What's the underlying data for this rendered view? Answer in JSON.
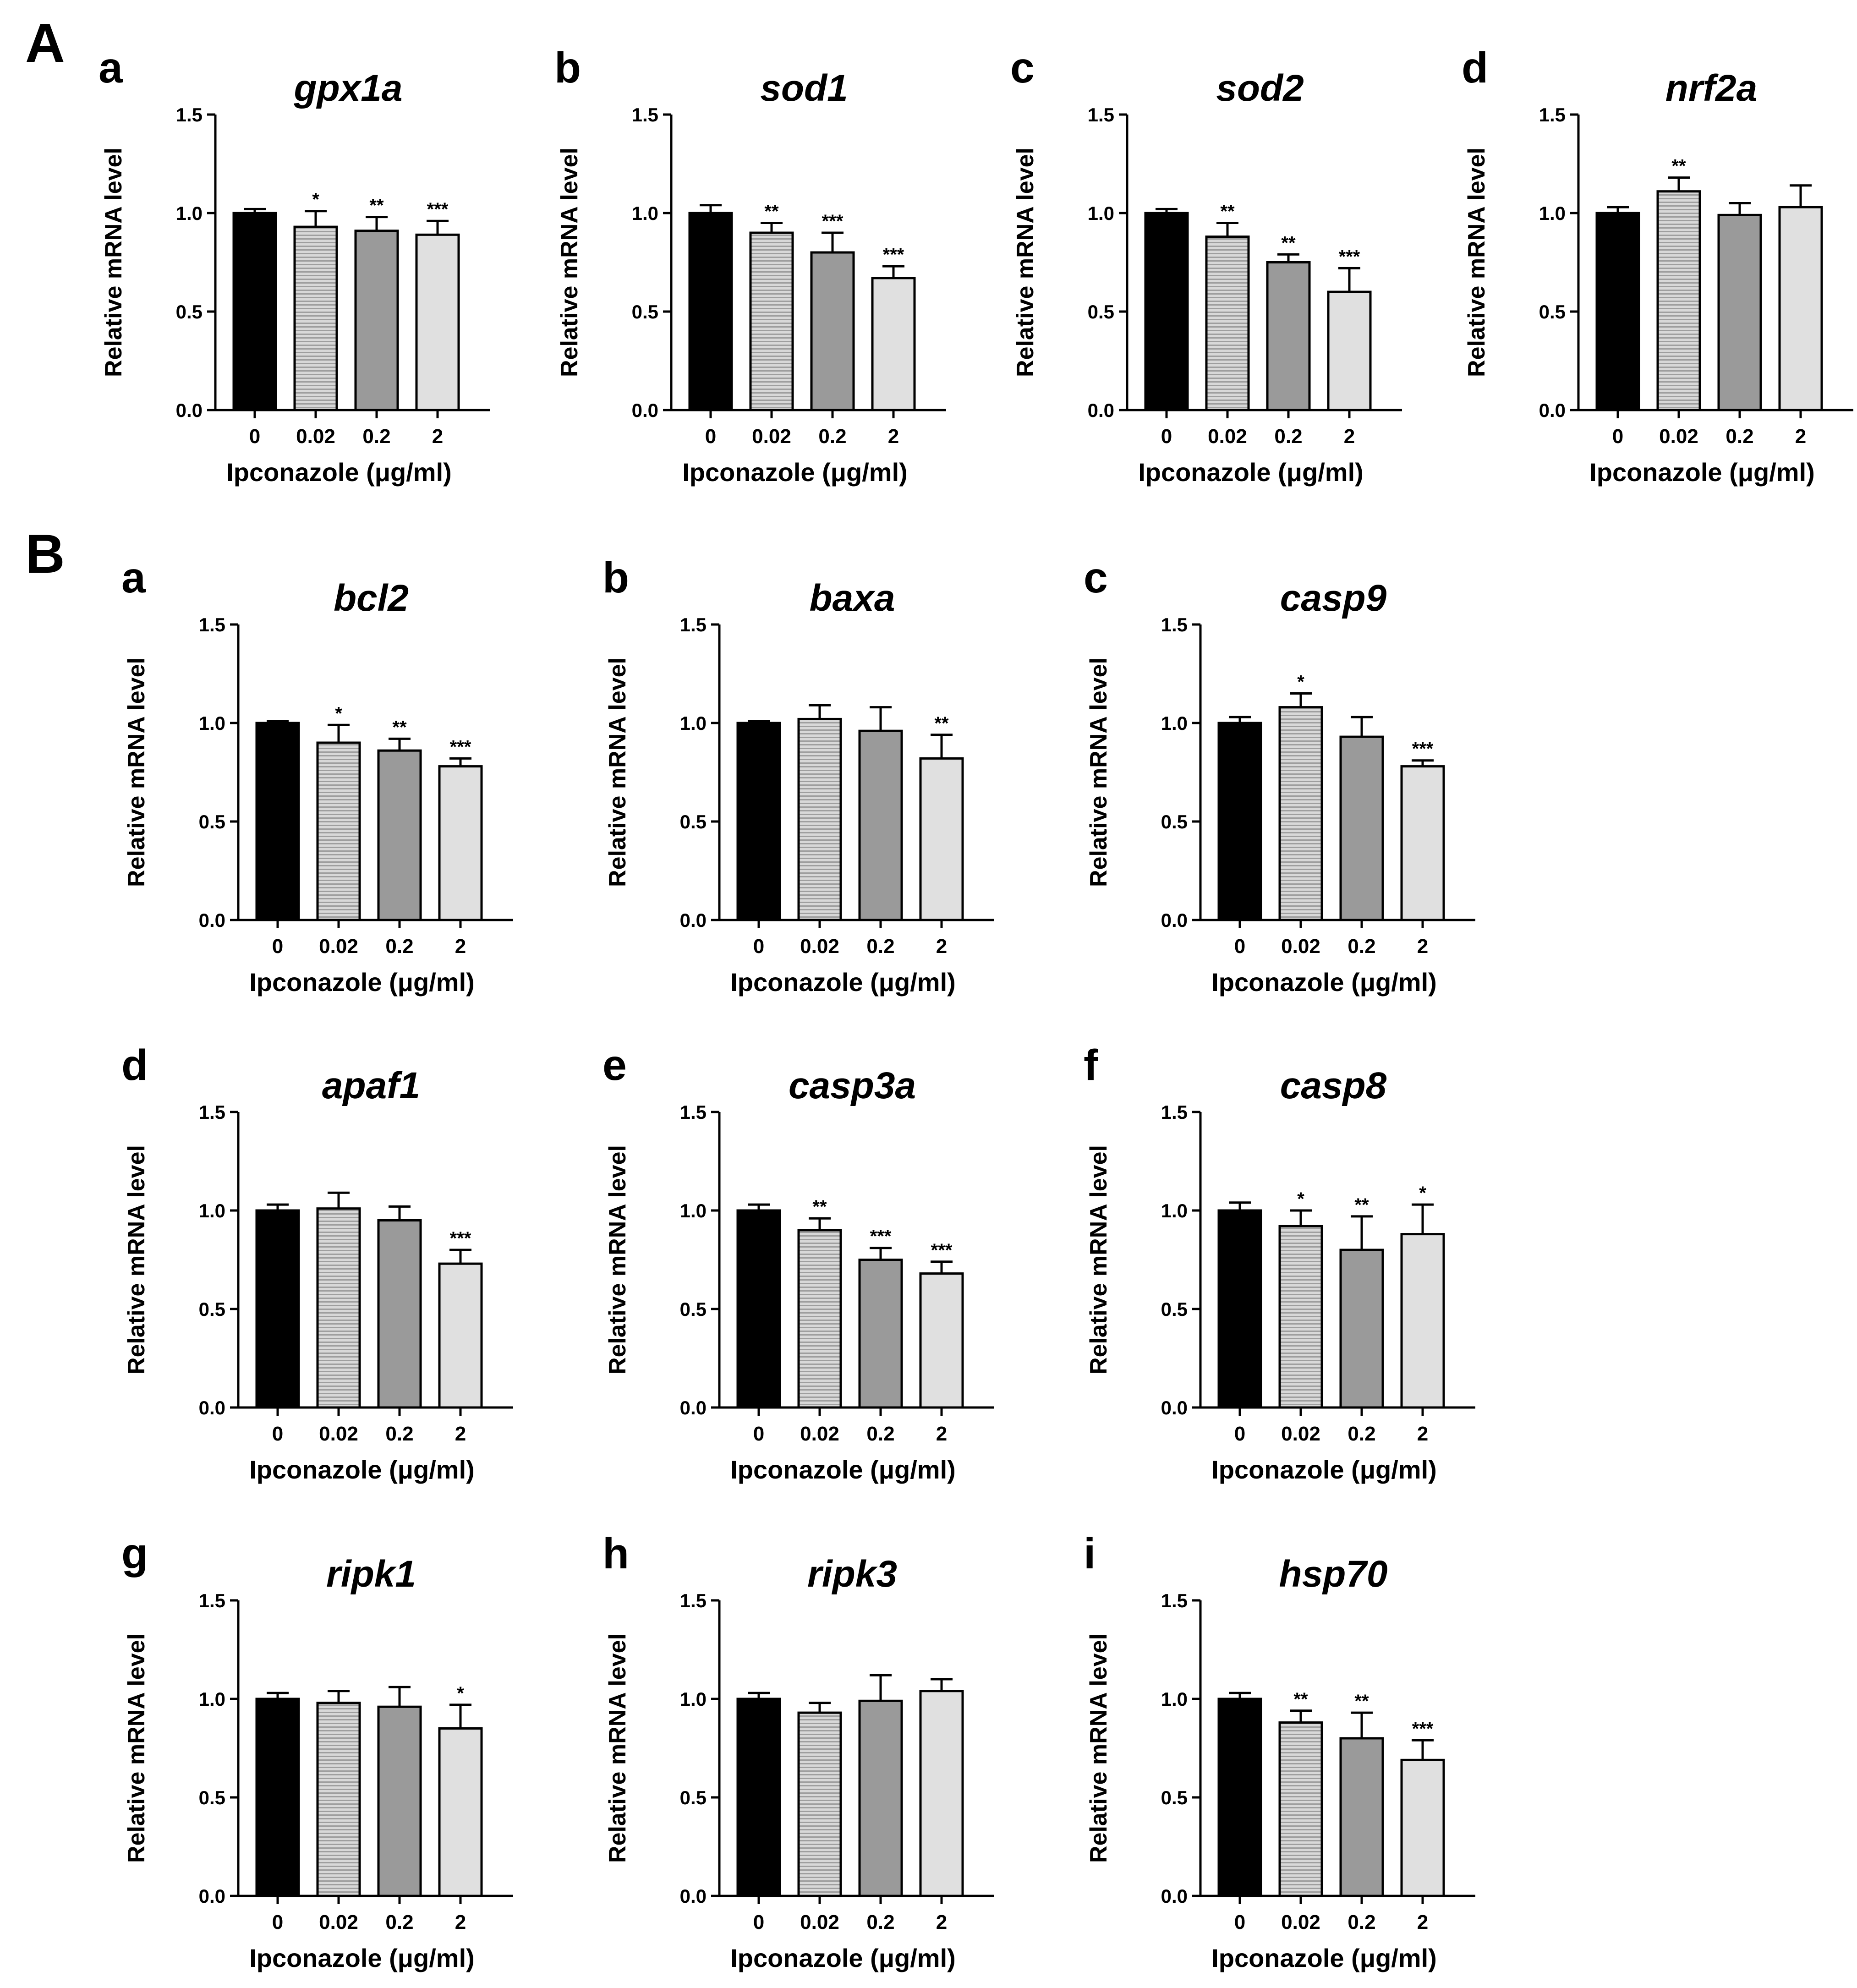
{
  "section_labels": [
    "A",
    "B"
  ],
  "chart_data": [
    {
      "type": "bar",
      "panel": "a",
      "section": "A",
      "title": "gpx1a",
      "ylabel": "Relative mRNA level",
      "xlabel": "Ipconazole (μg/ml)",
      "categories": [
        "0",
        "0.02",
        "0.2",
        "2"
      ],
      "values": [
        1.0,
        0.93,
        0.91,
        0.89
      ],
      "errors": [
        0.02,
        0.08,
        0.07,
        0.07
      ],
      "significance": [
        "",
        "*",
        "**",
        "***"
      ],
      "ylim": [
        0,
        1.5
      ],
      "yticks": [
        "0.0",
        "0.5",
        "1.0",
        "1.5"
      ],
      "colors": [
        "#000000",
        "#c2c2c2",
        "#9a9a9a",
        "#e0e0e0"
      ]
    },
    {
      "type": "bar",
      "panel": "b",
      "section": "A",
      "title": "sod1",
      "ylabel": "Relative mRNA level",
      "xlabel": "Ipconazole (μg/ml)",
      "categories": [
        "0",
        "0.02",
        "0.2",
        "2"
      ],
      "values": [
        1.0,
        0.9,
        0.8,
        0.67
      ],
      "errors": [
        0.04,
        0.05,
        0.1,
        0.06
      ],
      "significance": [
        "",
        "**",
        "***",
        "***"
      ],
      "ylim": [
        0,
        1.5
      ],
      "yticks": [
        "0.0",
        "0.5",
        "1.0",
        "1.5"
      ],
      "colors": [
        "#000000",
        "#c2c2c2",
        "#9a9a9a",
        "#e0e0e0"
      ]
    },
    {
      "type": "bar",
      "panel": "c",
      "section": "A",
      "title": "sod2",
      "ylabel": "Relative mRNA level",
      "xlabel": "Ipconazole (μg/ml)",
      "categories": [
        "0",
        "0.02",
        "0.2",
        "2"
      ],
      "values": [
        1.0,
        0.88,
        0.75,
        0.6
      ],
      "errors": [
        0.02,
        0.07,
        0.04,
        0.12
      ],
      "significance": [
        "",
        "**",
        "**",
        "***"
      ],
      "ylim": [
        0,
        1.5
      ],
      "yticks": [
        "0.0",
        "0.5",
        "1.0",
        "1.5"
      ],
      "colors": [
        "#000000",
        "#c2c2c2",
        "#9a9a9a",
        "#e0e0e0"
      ]
    },
    {
      "type": "bar",
      "panel": "d",
      "section": "A",
      "title": "nrf2a",
      "ylabel": "Relative mRNA level",
      "xlabel": "Ipconazole (μg/ml)",
      "categories": [
        "0",
        "0.02",
        "0.2",
        "2"
      ],
      "values": [
        1.0,
        1.11,
        0.99,
        1.03
      ],
      "errors": [
        0.03,
        0.07,
        0.06,
        0.11
      ],
      "significance": [
        "",
        "**",
        "",
        ""
      ],
      "ylim": [
        0,
        1.5
      ],
      "yticks": [
        "0.0",
        "0.5",
        "1.0",
        "1.5"
      ],
      "colors": [
        "#000000",
        "#c2c2c2",
        "#9a9a9a",
        "#e0e0e0"
      ]
    },
    {
      "type": "bar",
      "panel": "a",
      "section": "B",
      "title": "bcl2",
      "ylabel": "Relative mRNA level",
      "xlabel": "Ipconazole (μg/ml)",
      "categories": [
        "0",
        "0.02",
        "0.2",
        "2"
      ],
      "values": [
        1.0,
        0.9,
        0.86,
        0.78
      ],
      "errors": [
        0.01,
        0.09,
        0.06,
        0.04
      ],
      "significance": [
        "",
        "*",
        "**",
        "***"
      ],
      "ylim": [
        0,
        1.5
      ],
      "yticks": [
        "0.0",
        "0.5",
        "1.0",
        "1.5"
      ],
      "colors": [
        "#000000",
        "#c2c2c2",
        "#9a9a9a",
        "#e0e0e0"
      ]
    },
    {
      "type": "bar",
      "panel": "b",
      "section": "B",
      "title": "baxa",
      "ylabel": "Relative mRNA level",
      "xlabel": "Ipconazole (μg/ml)",
      "categories": [
        "0",
        "0.02",
        "0.2",
        "2"
      ],
      "values": [
        1.0,
        1.02,
        0.96,
        0.82
      ],
      "errors": [
        0.01,
        0.07,
        0.12,
        0.12
      ],
      "significance": [
        "",
        "",
        "",
        "**"
      ],
      "ylim": [
        0,
        1.5
      ],
      "yticks": [
        "0.0",
        "0.5",
        "1.0",
        "1.5"
      ],
      "colors": [
        "#000000",
        "#c2c2c2",
        "#9a9a9a",
        "#e0e0e0"
      ]
    },
    {
      "type": "bar",
      "panel": "c",
      "section": "B",
      "title": "casp9",
      "ylabel": "Relative mRNA level",
      "xlabel": "Ipconazole (μg/ml)",
      "categories": [
        "0",
        "0.02",
        "0.2",
        "2"
      ],
      "values": [
        1.0,
        1.08,
        0.93,
        0.78
      ],
      "errors": [
        0.03,
        0.07,
        0.1,
        0.03
      ],
      "significance": [
        "",
        "*",
        "",
        "***"
      ],
      "ylim": [
        0,
        1.5
      ],
      "yticks": [
        "0.0",
        "0.5",
        "1.0",
        "1.5"
      ],
      "colors": [
        "#000000",
        "#c2c2c2",
        "#9a9a9a",
        "#e0e0e0"
      ]
    },
    {
      "type": "bar",
      "panel": "d",
      "section": "B",
      "title": "apaf1",
      "ylabel": "Relative mRNA level",
      "xlabel": "Ipconazole (μg/ml)",
      "categories": [
        "0",
        "0.02",
        "0.2",
        "2"
      ],
      "values": [
        1.0,
        1.01,
        0.95,
        0.73
      ],
      "errors": [
        0.03,
        0.08,
        0.07,
        0.07
      ],
      "significance": [
        "",
        "",
        "",
        "***"
      ],
      "ylim": [
        0,
        1.5
      ],
      "yticks": [
        "0.0",
        "0.5",
        "1.0",
        "1.5"
      ],
      "colors": [
        "#000000",
        "#c2c2c2",
        "#9a9a9a",
        "#e0e0e0"
      ]
    },
    {
      "type": "bar",
      "panel": "e",
      "section": "B",
      "title": "casp3a",
      "ylabel": "Relative mRNA level",
      "xlabel": "Ipconazole (μg/ml)",
      "categories": [
        "0",
        "0.02",
        "0.2",
        "2"
      ],
      "values": [
        1.0,
        0.9,
        0.75,
        0.68
      ],
      "errors": [
        0.03,
        0.06,
        0.06,
        0.06
      ],
      "significance": [
        "",
        "**",
        "***",
        "***"
      ],
      "ylim": [
        0,
        1.5
      ],
      "yticks": [
        "0.0",
        "0.5",
        "1.0",
        "1.5"
      ],
      "colors": [
        "#000000",
        "#c2c2c2",
        "#9a9a9a",
        "#e0e0e0"
      ]
    },
    {
      "type": "bar",
      "panel": "f",
      "section": "B",
      "title": "casp8",
      "ylabel": "Relative mRNA level",
      "xlabel": "Ipconazole (μg/ml)",
      "categories": [
        "0",
        "0.02",
        "0.2",
        "2"
      ],
      "values": [
        1.0,
        0.92,
        0.8,
        0.88
      ],
      "errors": [
        0.04,
        0.08,
        0.17,
        0.15
      ],
      "significance": [
        "",
        "*",
        "**",
        "*"
      ],
      "ylim": [
        0,
        1.5
      ],
      "yticks": [
        "0.0",
        "0.5",
        "1.0",
        "1.5"
      ],
      "colors": [
        "#000000",
        "#c2c2c2",
        "#9a9a9a",
        "#e0e0e0"
      ]
    },
    {
      "type": "bar",
      "panel": "g",
      "section": "B",
      "title": "ripk1",
      "ylabel": "Relative mRNA level",
      "xlabel": "Ipconazole (μg/ml)",
      "categories": [
        "0",
        "0.02",
        "0.2",
        "2"
      ],
      "values": [
        1.0,
        0.98,
        0.96,
        0.85
      ],
      "errors": [
        0.03,
        0.06,
        0.1,
        0.12
      ],
      "significance": [
        "",
        "",
        "",
        "*"
      ],
      "ylim": [
        0,
        1.5
      ],
      "yticks": [
        "0.0",
        "0.5",
        "1.0",
        "1.5"
      ],
      "colors": [
        "#000000",
        "#c2c2c2",
        "#9a9a9a",
        "#e0e0e0"
      ]
    },
    {
      "type": "bar",
      "panel": "h",
      "section": "B",
      "title": "ripk3",
      "ylabel": "Relative mRNA level",
      "xlabel": "Ipconazole (μg/ml)",
      "categories": [
        "0",
        "0.02",
        "0.2",
        "2"
      ],
      "values": [
        1.0,
        0.93,
        0.99,
        1.04
      ],
      "errors": [
        0.03,
        0.05,
        0.13,
        0.06
      ],
      "significance": [
        "",
        "",
        "",
        ""
      ],
      "ylim": [
        0,
        1.5
      ],
      "yticks": [
        "0.0",
        "0.5",
        "1.0",
        "1.5"
      ],
      "colors": [
        "#000000",
        "#c2c2c2",
        "#9a9a9a",
        "#e0e0e0"
      ]
    },
    {
      "type": "bar",
      "panel": "i",
      "section": "B",
      "title": "hsp70",
      "ylabel": "Relative mRNA level",
      "xlabel": "Ipconazole (μg/ml)",
      "categories": [
        "0",
        "0.02",
        "0.2",
        "2"
      ],
      "values": [
        1.0,
        0.88,
        0.8,
        0.69
      ],
      "errors": [
        0.03,
        0.06,
        0.13,
        0.1
      ],
      "significance": [
        "",
        "**",
        "**",
        "***"
      ],
      "ylim": [
        0,
        1.5
      ],
      "yticks": [
        "0.0",
        "0.5",
        "1.0",
        "1.5"
      ],
      "colors": [
        "#000000",
        "#c2c2c2",
        "#9a9a9a",
        "#e0e0e0"
      ]
    }
  ]
}
